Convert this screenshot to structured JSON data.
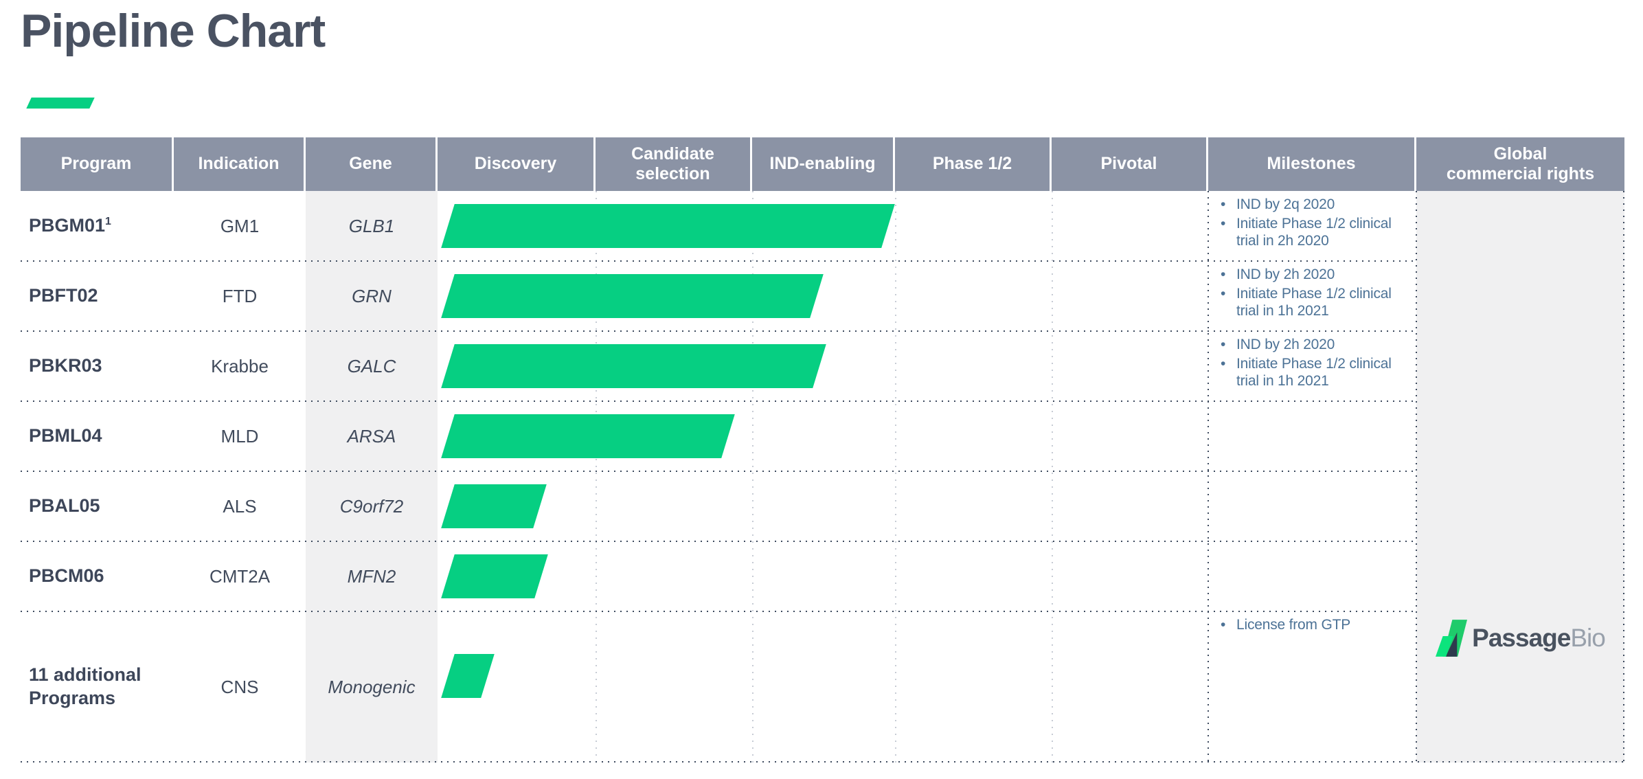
{
  "title": "Pipeline Chart",
  "table": {
    "headers": {
      "program": "Program",
      "indication": "Indication",
      "gene": "Gene",
      "discovery": "Discovery",
      "candidate": "Candidate\nselection",
      "ind": "IND-enabling",
      "phase12": "Phase 1/2",
      "pivotal": "Pivotal",
      "milestones": "Milestones",
      "global": "Global\ncommercial rights"
    },
    "rows": [
      {
        "program": "PBGM01",
        "sup": "1",
        "indication": "GM1",
        "gene": "GLB1",
        "milestones": [
          "IND by 2q 2020",
          "Initiate Phase 1/2 clinical\ntrial in 2h 2020"
        ]
      },
      {
        "program": "PBFT02",
        "sup": "",
        "indication": "FTD",
        "gene": "GRN",
        "milestones": [
          "IND by 2h 2020",
          "Initiate Phase 1/2 clinical\ntrial in 1h 2021"
        ]
      },
      {
        "program": "PBKR03",
        "sup": "",
        "indication": "Krabbe",
        "gene": "GALC",
        "milestones": [
          "IND by 2h 2020",
          "Initiate Phase 1/2 clinical\ntrial in 1h 2021"
        ]
      },
      {
        "program": "PBML04",
        "sup": "",
        "indication": "MLD",
        "gene": "ARSA",
        "milestones": []
      },
      {
        "program": "PBAL05",
        "sup": "",
        "indication": "ALS",
        "gene": "C9orf72",
        "milestones": []
      },
      {
        "program": "PBCM06",
        "sup": "",
        "indication": "CMT2A",
        "gene": "MFN2",
        "milestones": []
      },
      {
        "program": "11 additional Programs",
        "sup": "",
        "indication": "CNS",
        "gene": "Monogenic",
        "milestones": [
          "License from GTP"
        ]
      }
    ]
  },
  "logo": {
    "name_bold": "Passage",
    "name_light": "Bio"
  },
  "colors": {
    "accent_green": "#06CF82",
    "header_bg": "#8B93A5",
    "title_text": "#4A5262",
    "body_text": "#414B5C",
    "milestone_text": "#4C7296",
    "column_strip_bg": "#F0F0F1",
    "separator_dots": "#3D4A5E"
  },
  "chart_data": {
    "type": "bar",
    "title": "Pipeline Chart",
    "categories": [
      "PBGM01",
      "PBFT02",
      "PBKR03",
      "PBML04",
      "PBAL05",
      "PBCM06",
      "11 additional Programs"
    ],
    "stages": [
      "Discovery",
      "Candidate selection",
      "IND-enabling",
      "Phase 1/2",
      "Pivotal"
    ],
    "stage_progress": [
      3.0,
      2.5,
      2.52,
      1.89,
      0.69,
      0.7,
      0.36
    ],
    "units": "stages completed from start of Discovery (1 = one full stage column)",
    "bar_color": "#06CF82",
    "legend": "none",
    "grid": "dotted column guides"
  }
}
